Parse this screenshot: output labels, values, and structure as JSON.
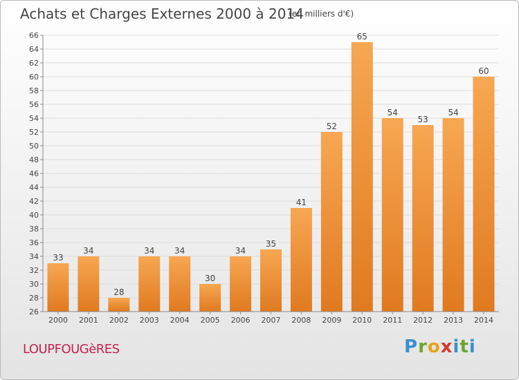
{
  "header": {
    "title": "Achats et Charges Externes 2000 à 2014",
    "subtitle": "(en milliers d'€)"
  },
  "footer": {
    "commune": "LOUPFOUGèRES",
    "logo": "Proxiti"
  },
  "colors": {
    "bar_light": "#f7a752",
    "bar_dark": "#e07a1f",
    "grid": "#dcdcdc",
    "commune": "#c7204e"
  },
  "chart_data": {
    "type": "bar",
    "title": "Achats et Charges Externes 2000 à 2014",
    "subtitle": "(en milliers d'€)",
    "xlabel": "",
    "ylabel": "",
    "categories": [
      "2000",
      "2001",
      "2002",
      "2003",
      "2004",
      "2005",
      "2006",
      "2007",
      "2008",
      "2009",
      "2010",
      "2011",
      "2012",
      "2013",
      "2014"
    ],
    "values": [
      33,
      34,
      28,
      34,
      34,
      30,
      34,
      35,
      41,
      52,
      65,
      54,
      53,
      54,
      60
    ],
    "ylim": [
      26,
      66
    ],
    "ytick_step": 2,
    "grid": true,
    "data_labels": true
  }
}
